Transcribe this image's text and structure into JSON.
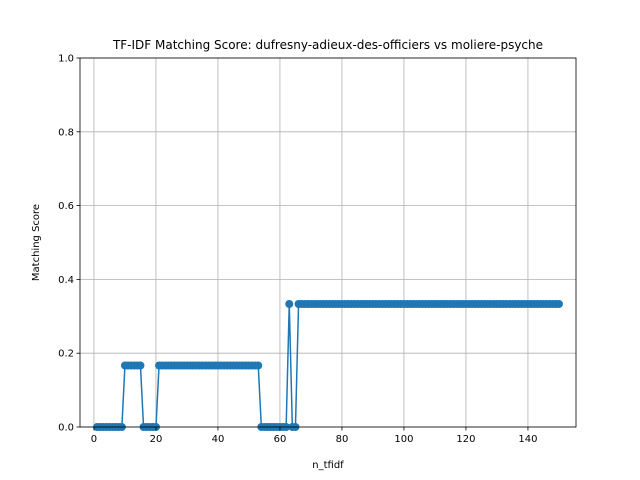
{
  "chart_data": {
    "type": "line",
    "title": "TF-IDF Matching Score: dufresny-adieux-des-officiers vs moliere-psyche",
    "xlabel": "n_tfidf",
    "ylabel": "Matching Score",
    "xlim": [
      -4.5,
      155.5
    ],
    "ylim": [
      0,
      1
    ],
    "grid": true,
    "series_color": "#1f77b4",
    "xticks": [
      0,
      20,
      40,
      60,
      80,
      100,
      120,
      140
    ],
    "xtick_labels": [
      "0",
      "20",
      "40",
      "60",
      "80",
      "100",
      "120",
      "140"
    ],
    "yticks": [
      0.0,
      0.2,
      0.4,
      0.6,
      0.8,
      1.0
    ],
    "ytick_labels": [
      "0.0",
      "0.2",
      "0.4",
      "0.6",
      "0.8",
      "1.0"
    ],
    "segments": [
      {
        "from": 1,
        "to": 9,
        "value": 0.0
      },
      {
        "from": 10,
        "to": 15,
        "value": 0.1667
      },
      {
        "from": 16,
        "to": 20,
        "value": 0.0
      },
      {
        "from": 21,
        "to": 53,
        "value": 0.1667
      },
      {
        "from": 54,
        "to": 62,
        "value": 0.0
      },
      {
        "from": 63,
        "to": 63,
        "value": 0.3333
      },
      {
        "from": 64,
        "to": 65,
        "value": 0.0
      },
      {
        "from": 66,
        "to": 150,
        "value": 0.3333
      }
    ]
  }
}
